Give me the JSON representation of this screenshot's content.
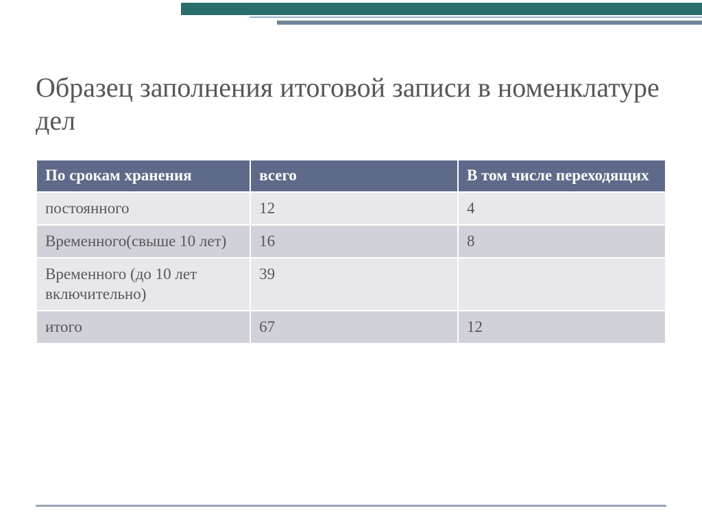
{
  "title": "Образец заполнения итоговой записи в номенклатуре дел",
  "table": {
    "columns": [
      "По срокам хранения",
      "всего",
      "В том числе переходящих"
    ],
    "rows": [
      [
        "постоянного",
        "12",
        "4"
      ],
      [
        "Временного(свыше 10 лет)",
        "16",
        "8"
      ],
      [
        "Временного (до 10 лет включительно)",
        "39",
        ""
      ],
      [
        "итого",
        "67",
        "12"
      ]
    ],
    "header_bg": "#5f6989",
    "header_text_color": "#ffffff",
    "row_odd_bg": "#e8e8ec",
    "row_even_bg": "#d1d2d9",
    "text_color": "#585657",
    "border_color": "#ffffff",
    "font_size": 23
  },
  "deco_colors": {
    "bar1": "#2a6d6a",
    "bar2": "#96b2c7",
    "bar3": "#6f8698",
    "bottom": "#96a5b6"
  },
  "title_color": "#595657",
  "title_fontsize": 40,
  "background": "#ffffff"
}
